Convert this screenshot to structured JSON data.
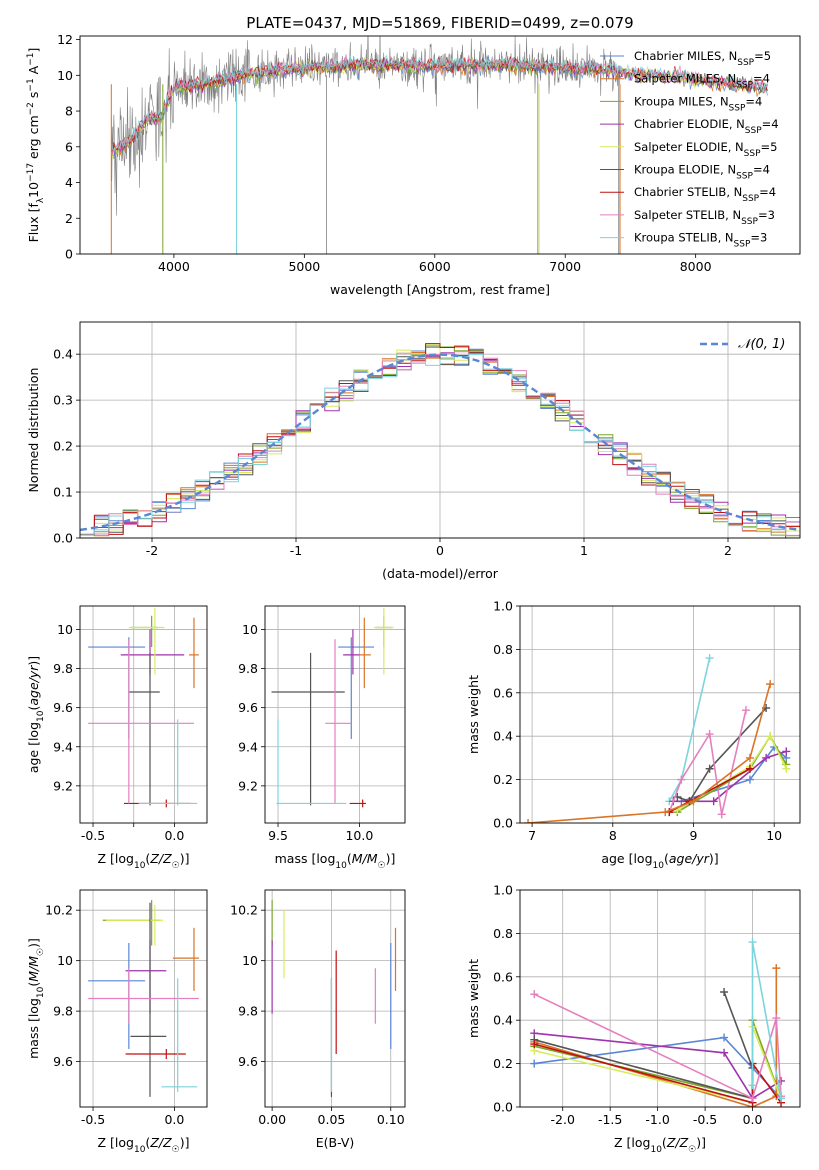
{
  "figure_title": "PLATE=0437, MJD=51869, FIBERID=0499, z=0.079",
  "colors": [
    "#5a86d5",
    "#d97326",
    "#7aa62a",
    "#9e33ac",
    "#d7ec5c",
    "#555555",
    "#c01010",
    "#e57fbe",
    "#7cd4dc"
  ],
  "chart_data": [
    {
      "id": "spectrum",
      "type": "line",
      "title": "PLATE=0437, MJD=51869, FIBERID=0499, z=0.079",
      "xlabel": "wavelength [Angstrom, rest frame]",
      "ylabel": "Flux [fλ10⁻¹⁷ erg cm⁻² s⁻¹ A⁻¹]",
      "xlim": [
        3280,
        8800
      ],
      "ylim": [
        0,
        12.2
      ],
      "xticks": [
        4000,
        5000,
        6000,
        7000,
        8000
      ],
      "yticks": [
        0,
        2,
        4,
        6,
        8,
        10,
        12
      ],
      "grid": false,
      "legend_position": "right",
      "legend": [
        "Chabrier MILES, N_SSP=5",
        "Salpeter MILES, N_SSP=4",
        "Kroupa MILES, N_SSP=4",
        "Chabrier ELODIE, N_SSP=4",
        "Salpeter ELODIE, N_SSP=5",
        "Kroupa ELODIE, N_SSP=4",
        "Chabrier STELIB, N_SSP=4",
        "Salpeter STELIB, N_SSP=3",
        "Kroupa STELIB, N_SSP=3"
      ],
      "observed_color": "#808080",
      "observed_range": [
        3520,
        7420
      ],
      "model_continuum": {
        "x": [
          3520,
          3600,
          3700,
          3800,
          3900,
          3950,
          4000,
          4100,
          4300,
          4500,
          4800,
          5000,
          5200,
          5500,
          6000,
          6500,
          7000,
          7300,
          7500,
          8000,
          8400,
          8550
        ],
        "y": [
          5.8,
          6.0,
          6.6,
          7.6,
          7.6,
          8.6,
          9.3,
          9.4,
          9.6,
          10.0,
          10.3,
          10.4,
          10.5,
          10.6,
          10.5,
          10.6,
          10.4,
          10.3,
          10.1,
          9.8,
          9.4,
          9.3
        ]
      }
    },
    {
      "id": "residuals",
      "type": "step",
      "xlabel": "(data-model)/error",
      "ylabel": "Normed distribution",
      "xlim": [
        -2.5,
        2.5
      ],
      "ylim": [
        0,
        0.47
      ],
      "xticks": [
        -2,
        -1,
        0,
        1,
        2
      ],
      "yticks": [
        0.0,
        0.1,
        0.2,
        0.3,
        0.4
      ],
      "grid": true,
      "legend_position": "top-right",
      "reference_curve": {
        "name": "𝒩(0, 1)",
        "mu": 0,
        "sigma": 1
      },
      "bin_width": 0.1
    },
    {
      "id": "age-vs-Z",
      "type": "errorbar",
      "xlabel": "Z [log₁₀(Z/Z☉)]",
      "ylabel": "age  [log₁₀(age/yr)]",
      "xlim": [
        -0.58,
        0.2
      ],
      "ylim": [
        9.01,
        10.12
      ],
      "xticks": [
        -0.5,
        -0.25,
        0.0
      ],
      "yticks": [
        9.2,
        9.4,
        9.6,
        9.8,
        10.0
      ],
      "grid": true,
      "points": [
        {
          "x": -0.28,
          "y": 9.91,
          "xerr": [
            0.25,
            0.1
          ],
          "yerr": [
            0.47,
            0.05
          ],
          "color": "#5a86d5"
        },
        {
          "x": 0.12,
          "y": 9.87,
          "xerr": [
            0.03,
            0.03
          ],
          "yerr": [
            0.17,
            0.19
          ],
          "color": "#d97326"
        },
        {
          "x": -0.14,
          "y": 10.01,
          "xerr": [
            0.13,
            0.04
          ],
          "yerr": [
            0.1,
            0.06
          ],
          "color": "#7aa62a"
        },
        {
          "x": -0.15,
          "y": 9.87,
          "xerr": [
            0.18,
            0.21
          ],
          "yerr": [
            0.1,
            0.13
          ],
          "color": "#9e33ac"
        },
        {
          "x": -0.12,
          "y": 10.01,
          "xerr": [
            0.16,
            0.06
          ],
          "yerr": [
            0.24,
            0.1
          ],
          "color": "#d7ec5c"
        },
        {
          "x": -0.15,
          "y": 9.68,
          "xerr": [
            0.13,
            0.06
          ],
          "yerr": [
            0.58,
            0.2
          ],
          "color": "#555555"
        },
        {
          "x": -0.05,
          "y": 9.11,
          "xerr": [
            0.26,
            0.15
          ],
          "yerr": [
            0.02,
            0.02
          ],
          "color": "#c01010"
        },
        {
          "x": -0.28,
          "y": 9.52,
          "xerr": [
            0.25,
            0.4
          ],
          "yerr": [
            0.41,
            0.43
          ],
          "color": "#e57fbe"
        },
        {
          "x": 0.02,
          "y": 9.11,
          "xerr": [
            0.24,
            0.12
          ],
          "yerr": [
            0.01,
            0.43
          ],
          "color": "#7cd4dc"
        }
      ]
    },
    {
      "id": "age-vs-mass",
      "type": "errorbar",
      "xlabel": "mass [log₁₀(M/M☉)]",
      "ylabel": "",
      "xlim": [
        9.42,
        10.28
      ],
      "ylim": [
        9.01,
        10.12
      ],
      "xticks": [
        9.5,
        10.0
      ],
      "yticks": [
        9.2,
        9.4,
        9.6,
        9.8,
        10.0
      ],
      "grid": true,
      "points": [
        {
          "x": 9.95,
          "y": 9.91,
          "xerr": [
            0.08,
            0.14
          ],
          "yerr": [
            0.47,
            0.05
          ],
          "color": "#5a86d5"
        },
        {
          "x": 10.03,
          "y": 9.87,
          "xerr": [
            0.03,
            0.04
          ],
          "yerr": [
            0.17,
            0.19
          ],
          "color": "#d97326"
        },
        {
          "x": 10.15,
          "y": 10.01,
          "xerr": [
            0.05,
            0.05
          ],
          "yerr": [
            0.1,
            0.06
          ],
          "color": "#7aa62a"
        },
        {
          "x": 9.96,
          "y": 9.87,
          "xerr": [
            0.06,
            0.04
          ],
          "yerr": [
            0.1,
            0.13
          ],
          "color": "#9e33ac"
        },
        {
          "x": 10.15,
          "y": 10.01,
          "xerr": [
            0.06,
            0.06
          ],
          "yerr": [
            0.24,
            0.1
          ],
          "color": "#d7ec5c"
        },
        {
          "x": 9.7,
          "y": 9.68,
          "xerr": [
            0.24,
            0.21
          ],
          "yerr": [
            0.58,
            0.2
          ],
          "color": "#555555"
        },
        {
          "x": 10.02,
          "y": 9.11,
          "xerr": [
            0.08,
            0.02
          ],
          "yerr": [
            0.02,
            0.02
          ],
          "color": "#c01010"
        },
        {
          "x": 9.85,
          "y": 9.52,
          "xerr": [
            0.06,
            0.1
          ],
          "yerr": [
            0.41,
            0.43
          ],
          "color": "#e57fbe"
        },
        {
          "x": 9.5,
          "y": 9.11,
          "xerr": [
            0.01,
            0.42
          ],
          "yerr": [
            0.01,
            0.43
          ],
          "color": "#7cd4dc"
        }
      ]
    },
    {
      "id": "weight-vs-age",
      "type": "line",
      "xlabel": "age  [log₁₀(age/yr)]",
      "ylabel": "mass weight",
      "xlim": [
        6.85,
        10.32
      ],
      "ylim": [
        0,
        1.0
      ],
      "xticks": [
        7,
        8,
        9,
        10
      ],
      "yticks": [
        0.0,
        0.2,
        0.4,
        0.6,
        0.8,
        1.0
      ],
      "grid": true,
      "series": [
        {
          "color": "#5a86d5",
          "x": [
            8.85,
            9.7,
            10.0,
            10.15
          ],
          "y": [
            0.1,
            0.2,
            0.35,
            0.3
          ]
        },
        {
          "color": "#7cd4dc",
          "x": [
            8.7,
            8.85,
            9.2
          ],
          "y": [
            0.1,
            0.2,
            0.76
          ]
        },
        {
          "color": "#9e33ac",
          "x": [
            8.75,
            9.25,
            9.9,
            10.15
          ],
          "y": [
            0.1,
            0.1,
            0.3,
            0.33
          ]
        },
        {
          "color": "#555555",
          "x": [
            8.8,
            8.95,
            9.2,
            9.9
          ],
          "y": [
            0.12,
            0.1,
            0.25,
            0.53
          ]
        },
        {
          "color": "#e57fbe",
          "x": [
            8.7,
            8.85,
            9.2,
            9.35,
            9.65
          ],
          "y": [
            0.05,
            0.2,
            0.41,
            0.04,
            0.52
          ]
        },
        {
          "color": "#7aa62a",
          "x": [
            8.8,
            9.7,
            9.95,
            10.15
          ],
          "y": [
            0.05,
            0.25,
            0.4,
            0.27
          ]
        },
        {
          "color": "#d7ec5c",
          "x": [
            8.8,
            9.7,
            9.95,
            10.15
          ],
          "y": [
            0.06,
            0.26,
            0.4,
            0.25
          ]
        },
        {
          "color": "#c01010",
          "x": [
            8.7,
            8.95,
            9.7
          ],
          "y": [
            0.05,
            0.1,
            0.25
          ]
        },
        {
          "color": "#d97326",
          "x": [
            6.95,
            8.65,
            9.0,
            9.7,
            9.95
          ],
          "y": [
            0.0,
            0.05,
            0.1,
            0.3,
            0.64
          ]
        }
      ]
    },
    {
      "id": "mass-vs-Z",
      "type": "errorbar",
      "xlabel": "Z [log₁₀(Z/Z☉)]",
      "ylabel": "mass [log₁₀(M/M☉)]",
      "xlim": [
        -0.58,
        0.2
      ],
      "ylim": [
        9.42,
        10.28
      ],
      "xticks": [
        -0.5,
        0.0
      ],
      "yticks": [
        9.6,
        9.8,
        10.0,
        10.2
      ],
      "grid": true,
      "points": [
        {
          "x": -0.28,
          "y": 9.92,
          "xerr": [
            0.25,
            0.1
          ],
          "yerr": [
            0.27,
            0.15
          ],
          "color": "#5a86d5"
        },
        {
          "x": 0.12,
          "y": 10.01,
          "xerr": [
            0.13,
            0.03
          ],
          "yerr": [
            0.13,
            0.12
          ],
          "color": "#d97326"
        },
        {
          "x": -0.14,
          "y": 10.16,
          "xerr": [
            0.3,
            0.05
          ],
          "yerr": [
            0.1,
            0.08
          ],
          "color": "#7aa62a"
        },
        {
          "x": -0.15,
          "y": 9.96,
          "xerr": [
            0.15,
            0.1
          ],
          "yerr": [
            0.17,
            0.12
          ],
          "color": "#9e33ac"
        },
        {
          "x": -0.12,
          "y": 10.16,
          "xerr": [
            0.3,
            0.05
          ],
          "yerr": [
            0.1,
            0.06
          ],
          "color": "#d7ec5c"
        },
        {
          "x": -0.15,
          "y": 9.7,
          "xerr": [
            0.12,
            0.1
          ],
          "yerr": [
            0.24,
            0.53
          ],
          "color": "#555555"
        },
        {
          "x": -0.05,
          "y": 9.63,
          "xerr": [
            0.25,
            0.12
          ],
          "yerr": [
            0.02,
            0.02
          ],
          "color": "#c01010"
        },
        {
          "x": -0.28,
          "y": 9.85,
          "xerr": [
            0.25,
            0.43
          ],
          "yerr": [
            0.1,
            0.12
          ],
          "color": "#e57fbe"
        },
        {
          "x": 0.02,
          "y": 9.5,
          "xerr": [
            0.1,
            0.12
          ],
          "yerr": [
            0.02,
            0.43
          ],
          "color": "#7cd4dc"
        }
      ]
    },
    {
      "id": "mass-vs-ebv",
      "type": "errorbar",
      "xlabel": "E(B-V)",
      "ylabel": "",
      "xlim": [
        -0.006,
        0.112
      ],
      "ylim": [
        9.42,
        10.28
      ],
      "xticks": [
        0.0,
        0.05,
        0.1
      ],
      "yticks": [
        9.6,
        9.8,
        10.0,
        10.2
      ],
      "grid": true,
      "points": [
        {
          "x": 0.1,
          "y": 9.92,
          "yerr": [
            0.27,
            0.15
          ],
          "color": "#5a86d5"
        },
        {
          "x": 0.104,
          "y": 10.01,
          "yerr": [
            0.13,
            0.12
          ],
          "color": "#d97326"
        },
        {
          "x": 0.0,
          "y": 10.16,
          "yerr": [
            0.1,
            0.08
          ],
          "color": "#7aa62a"
        },
        {
          "x": 0.0,
          "y": 9.96,
          "yerr": [
            0.17,
            0.12
          ],
          "color": "#9e33ac"
        },
        {
          "x": 0.01,
          "y": 10.1,
          "yerr": [
            0.17,
            0.1
          ],
          "color": "#d7ec5c"
        },
        {
          "x": 0.05,
          "y": 9.7,
          "yerr": [
            0.24,
            0.23
          ],
          "color": "#555555"
        },
        {
          "x": 0.054,
          "y": 9.84,
          "yerr": [
            0.21,
            0.2
          ],
          "color": "#c01010"
        },
        {
          "x": 0.087,
          "y": 9.85,
          "yerr": [
            0.1,
            0.12
          ],
          "color": "#e57fbe"
        },
        {
          "x": 0.05,
          "y": 9.5,
          "yerr": [
            0.02,
            0.43
          ],
          "color": "#7cd4dc"
        }
      ]
    },
    {
      "id": "weight-vs-Z",
      "type": "line",
      "xlabel": "Z [log₁₀(Z/Z☉)]",
      "ylabel": "mass weight",
      "xlim": [
        -2.45,
        0.5
      ],
      "ylim": [
        0,
        1.0
      ],
      "xticks": [
        -2.0,
        -1.5,
        -1.0,
        -0.5,
        0.0
      ],
      "yticks": [
        0.0,
        0.2,
        0.4,
        0.6,
        0.8,
        1.0
      ],
      "grid": true,
      "series": [
        {
          "color": "#5a86d5",
          "x": [
            -2.3,
            -0.3,
            0.0,
            0.3
          ],
          "y": [
            0.2,
            0.32,
            0.18,
            0.04
          ]
        },
        {
          "color": "#d97326",
          "x": [
            -2.3,
            0.0,
            0.25,
            0.25
          ],
          "y": [
            0.3,
            0.0,
            0.05,
            0.64
          ]
        },
        {
          "color": "#7aa62a",
          "x": [
            -2.3,
            0.0,
            0.0,
            0.3
          ],
          "y": [
            0.28,
            0.04,
            0.4,
            0.04
          ]
        },
        {
          "color": "#9e33ac",
          "x": [
            -2.3,
            -0.3,
            0.0,
            0.3
          ],
          "y": [
            0.34,
            0.25,
            0.04,
            0.12
          ]
        },
        {
          "color": "#d7ec5c",
          "x": [
            -2.3,
            0.0,
            0.0,
            0.3
          ],
          "y": [
            0.26,
            0.02,
            0.37,
            0.04
          ]
        },
        {
          "color": "#555555",
          "x": [
            -2.3,
            0.0,
            0.0,
            -0.3
          ],
          "y": [
            0.31,
            0.04,
            0.18,
            0.53
          ]
        },
        {
          "color": "#c01010",
          "x": [
            -2.3,
            0.0,
            0.0,
            0.3
          ],
          "y": [
            0.29,
            0.02,
            0.2,
            0.02
          ]
        },
        {
          "color": "#e57fbe",
          "x": [
            -2.3,
            0.0,
            0.25,
            0.3
          ],
          "y": [
            0.52,
            0.04,
            0.41,
            0.05
          ]
        },
        {
          "color": "#7cd4dc",
          "x": [
            0.0,
            0.0,
            0.3
          ],
          "y": [
            0.1,
            0.76,
            0.04
          ]
        }
      ]
    }
  ]
}
